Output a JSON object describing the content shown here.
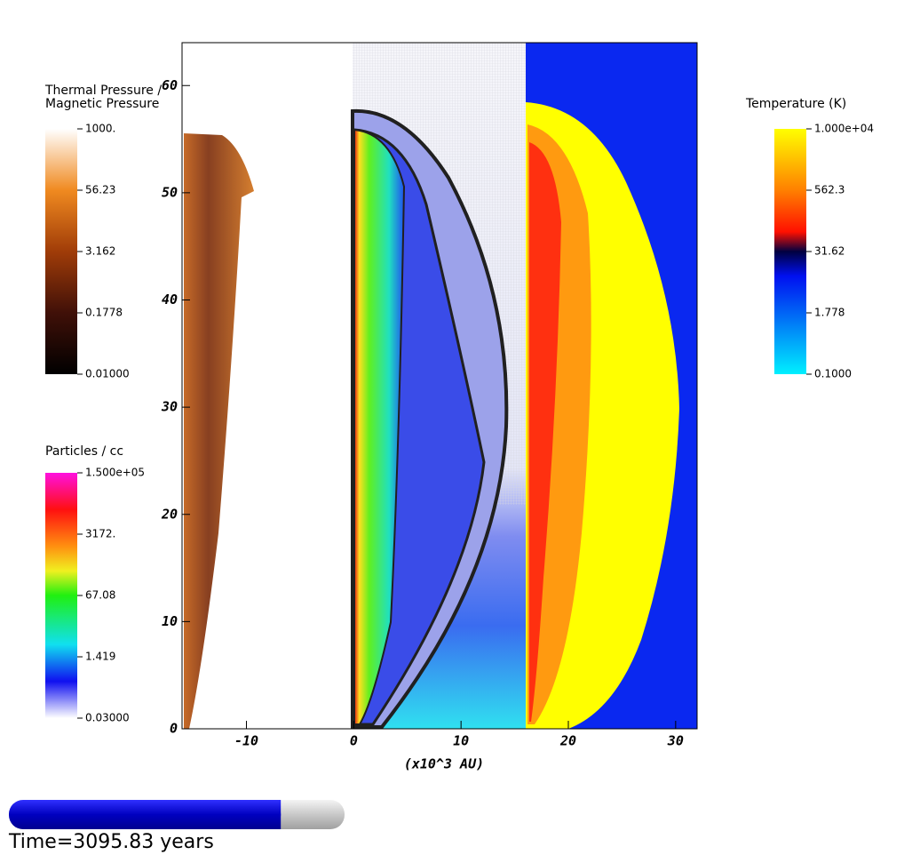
{
  "axes": {
    "xlabel": "(x10^3 AU)",
    "xlim": [
      -16,
      32
    ],
    "xticks": [
      -10,
      0,
      10,
      20,
      30
    ],
    "ylim": [
      0,
      64
    ],
    "yticks": [
      0,
      10,
      20,
      30,
      40,
      50,
      60
    ]
  },
  "legends": [
    {
      "title": [
        "Thermal Pressure /",
        "Magnetic Pressure"
      ],
      "labels": [
        "1000.",
        "56.23",
        "3.162",
        "0.1778",
        "0.01000"
      ]
    },
    {
      "title": [
        "Particles / cc"
      ],
      "labels": [
        "1.500e+05",
        "3172.",
        "67.08",
        "1.419",
        "0.03000"
      ]
    },
    {
      "title": [
        "Temperature (K)"
      ],
      "labels": [
        "1.000e+04",
        "562.3",
        "31.62",
        "1.778",
        "0.1000"
      ]
    }
  ],
  "time": "Time=3095.83 years",
  "progress": 0.81
}
